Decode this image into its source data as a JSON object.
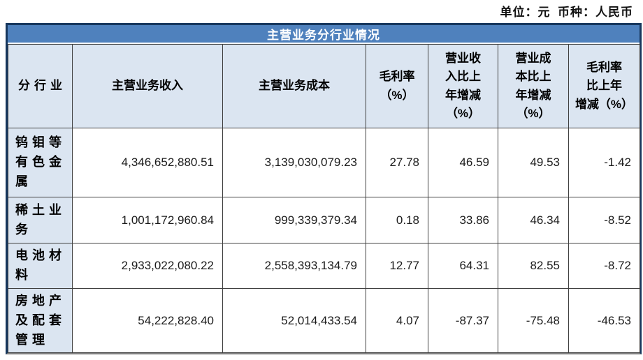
{
  "page": {
    "unit_note": "单位：元  币种：人民币"
  },
  "table": {
    "title": "主营业务分行业情况",
    "columns": [
      {
        "label": "分行业"
      },
      {
        "label": "主营业务收入"
      },
      {
        "label": "主营业务成本"
      },
      {
        "label": "毛利率\n（%）"
      },
      {
        "label": "营业收\n入比上\n年增减\n（%）"
      },
      {
        "label": "营业成\n本比上\n年增减\n（%）"
      },
      {
        "label": "毛利率\n比上年\n增减（%）"
      }
    ],
    "rows": [
      {
        "segment": "钨钼等有色金属",
        "revenue": "4,346,652,880.51",
        "cost": "3,139,030,079.23",
        "gross_margin": "27.78",
        "revenue_yoy": "46.59",
        "cost_yoy": "49.53",
        "margin_yoy": "-1.42"
      },
      {
        "segment": "稀土业务",
        "revenue": "1,001,172,960.84",
        "cost": "999,339,379.34",
        "gross_margin": "0.18",
        "revenue_yoy": "33.86",
        "cost_yoy": "46.34",
        "margin_yoy": "-8.52"
      },
      {
        "segment": "电池材料",
        "revenue": "2,933,022,080.22",
        "cost": "2,558,393,134.79",
        "gross_margin": "12.77",
        "revenue_yoy": "64.31",
        "cost_yoy": "82.55",
        "margin_yoy": "-8.72"
      },
      {
        "segment": "房地产及配套管理",
        "revenue": "54,222,828.40",
        "cost": "52,014,433.54",
        "gross_margin": "4.07",
        "revenue_yoy": "-87.37",
        "cost_yoy": "-75.48",
        "margin_yoy": "-46.53"
      }
    ],
    "colors": {
      "title_bar": "#4F81BD",
      "header_bg": "#DBE5F1",
      "outer_border": "#17375E",
      "grid_line": "#404040"
    }
  }
}
